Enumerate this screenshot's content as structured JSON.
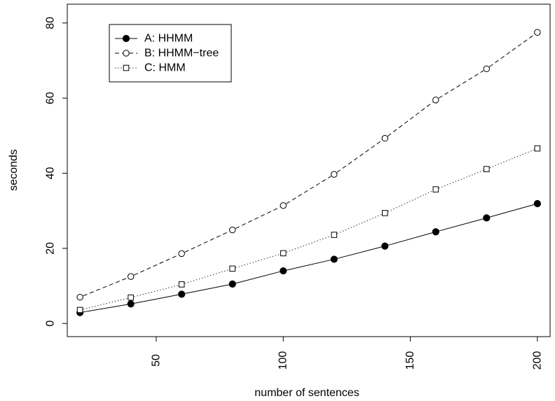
{
  "chart_data": {
    "type": "line",
    "title": "",
    "xlabel": "number of sentences",
    "ylabel": "seconds",
    "xlim": [
      15,
      205
    ],
    "ylim": [
      -3.5,
      85
    ],
    "xticks": [
      50,
      100,
      150,
      200
    ],
    "yticks": [
      0,
      20,
      40,
      60,
      80
    ],
    "grid": false,
    "legend_position": "top-left",
    "x": [
      20,
      40,
      60,
      80,
      100,
      120,
      140,
      160,
      180,
      200
    ],
    "series": [
      {
        "name": "A: HHMM",
        "line_style": "solid",
        "marker": "filled-circle",
        "values": [
          2.9,
          5.2,
          7.8,
          10.5,
          14.0,
          17.1,
          20.6,
          24.4,
          28.1,
          31.9
        ]
      },
      {
        "name": "B: HHMM−tree",
        "line_style": "dashed",
        "marker": "open-circle",
        "values": [
          7.0,
          12.5,
          18.6,
          24.9,
          31.4,
          39.7,
          49.3,
          59.5,
          67.8,
          77.5
        ]
      },
      {
        "name": "C: HMM",
        "line_style": "dotted",
        "marker": "open-square",
        "values": [
          3.6,
          6.9,
          10.4,
          14.6,
          18.7,
          23.6,
          29.4,
          35.7,
          41.1,
          46.6
        ]
      }
    ]
  }
}
